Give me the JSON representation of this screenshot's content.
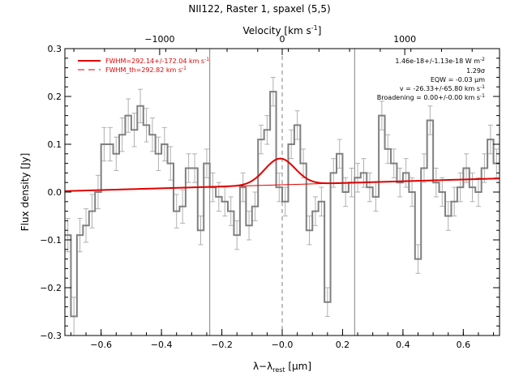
{
  "chart_data": {
    "type": "line",
    "title": "NII122, Raster 1, spaxel (5,5)",
    "xlabel": "λ−λ",
    "xlabel_sub": "rest",
    "xlabel_unit": " [μm]",
    "ylabel": "Flux density [Jy]",
    "top_axis_label": "Velocity [km s",
    "top_axis_label_sup": "-1",
    "top_axis_label_end": "]",
    "xlim": [
      -0.72,
      0.72
    ],
    "ylim": [
      -0.3,
      0.3
    ],
    "xticks": [
      -0.6,
      -0.4,
      -0.2,
      0.0,
      0.2,
      0.4,
      0.6
    ],
    "xtick_labels": [
      "−0.6",
      "−0.4",
      "−0.2",
      "−0.0",
      "0.2",
      "0.4",
      "0.6"
    ],
    "yticks": [
      -0.3,
      -0.2,
      -0.1,
      0.0,
      0.1,
      0.2,
      0.3
    ],
    "ytick_labels": [
      "−0.3",
      "−0.2",
      "−0.1",
      "0.0",
      "0.1",
      "0.2",
      "0.3"
    ],
    "top_ticks": [
      -1000,
      0,
      1000
    ],
    "top_tick_labels": [
      "−1000",
      "0",
      "1000"
    ],
    "top_axis_scale_um_per_kms": 0.000406,
    "vertical_lines": [
      -0.24,
      0.0,
      0.24
    ],
    "spectrum": {
      "name": "data",
      "step_x": [
        -0.72,
        -0.7,
        -0.68,
        -0.66,
        -0.64,
        -0.62,
        -0.6,
        -0.58,
        -0.56,
        -0.54,
        -0.52,
        -0.5,
        -0.48,
        -0.46,
        -0.44,
        -0.42,
        -0.4,
        -0.38,
        -0.36,
        -0.34,
        -0.32,
        -0.3,
        -0.28,
        -0.26,
        -0.24,
        -0.22,
        -0.2,
        -0.18,
        -0.16,
        -0.14,
        -0.12,
        -0.1,
        -0.08,
        -0.06,
        -0.04,
        -0.02,
        0.0,
        0.02,
        0.04,
        0.06,
        0.08,
        0.1,
        0.12,
        0.14,
        0.16,
        0.18,
        0.2,
        0.22,
        0.24,
        0.26,
        0.28,
        0.3,
        0.32,
        0.34,
        0.36,
        0.38,
        0.4,
        0.42,
        0.44,
        0.46,
        0.48,
        0.5,
        0.52,
        0.54,
        0.56,
        0.58,
        0.6,
        0.62,
        0.64,
        0.66,
        0.68,
        0.7
      ],
      "y": [
        -0.09,
        -0.26,
        -0.09,
        -0.07,
        -0.04,
        0.0,
        0.1,
        0.1,
        0.08,
        0.12,
        0.16,
        0.13,
        0.18,
        0.14,
        0.12,
        0.08,
        0.1,
        0.06,
        -0.04,
        -0.03,
        0.05,
        0.05,
        -0.08,
        0.06,
        0.01,
        -0.01,
        -0.02,
        -0.04,
        -0.09,
        0.01,
        -0.07,
        -0.03,
        0.11,
        0.13,
        0.21,
        0.01,
        -0.02,
        0.1,
        0.14,
        0.06,
        -0.08,
        -0.04,
        -0.02,
        -0.23,
        0.04,
        0.08,
        0.0,
        0.02,
        0.03,
        0.04,
        0.01,
        -0.01,
        0.16,
        0.09,
        0.06,
        0.02,
        0.04,
        0.0,
        -0.14,
        0.05,
        0.15,
        0.02,
        0.0,
        -0.05,
        -0.02,
        0.01,
        0.05,
        0.01,
        0.0,
        0.05,
        0.11,
        0.06
      ],
      "err": [
        0.035,
        0.04,
        0.035,
        0.035,
        0.035,
        0.035,
        0.035,
        0.035,
        0.035,
        0.035,
        0.035,
        0.035,
        0.035,
        0.035,
        0.035,
        0.035,
        0.035,
        0.035,
        0.035,
        0.035,
        0.03,
        0.03,
        0.03,
        0.03,
        0.03,
        0.03,
        0.03,
        0.03,
        0.03,
        0.03,
        0.03,
        0.03,
        0.03,
        0.03,
        0.03,
        0.03,
        0.03,
        0.03,
        0.03,
        0.03,
        0.03,
        0.03,
        0.03,
        0.03,
        0.03,
        0.03,
        0.03,
        0.03,
        0.03,
        0.03,
        0.03,
        0.03,
        0.03,
        0.03,
        0.03,
        0.03,
        0.03,
        0.03,
        0.03,
        0.03,
        0.03,
        0.03,
        0.03,
        0.03,
        0.03,
        0.03,
        0.03,
        0.03,
        0.03,
        0.03,
        0.03,
        0.03
      ],
      "color": "#808080"
    },
    "fit": {
      "name": "FWHM=292.14+/-172.04 km s",
      "name_sup": "-1",
      "baseline": [
        0.002,
        0.0285
      ],
      "gaussian_center": -0.0075,
      "gaussian_amp": 0.055,
      "gaussian_fwhm": 0.118,
      "x": [
        -0.72,
        0.72
      ],
      "color": "#e00000"
    },
    "instrumental": {
      "name": "FWHM_th=292.82 km s",
      "name_sup": "-1",
      "color": "#e00000"
    },
    "annotations": [
      {
        "text": "1.46e-18+/-1.13e-18 W m",
        "sup": "-2"
      },
      {
        "text": "1.29σ",
        "sup": ""
      },
      {
        "text": "EQW = -0.03 μm",
        "sup": ""
      },
      {
        "text": "v = -26.33+/-65.80 km s",
        "sup": "-1"
      },
      {
        "text": "Broadening = 0.00+/-0.00 km s",
        "sup": "-1"
      }
    ],
    "grid": false,
    "legend_position": "top-left"
  },
  "colors": {
    "axis": "#000000",
    "data": "#808080",
    "fit": "#e00000",
    "vline": "#808080"
  }
}
